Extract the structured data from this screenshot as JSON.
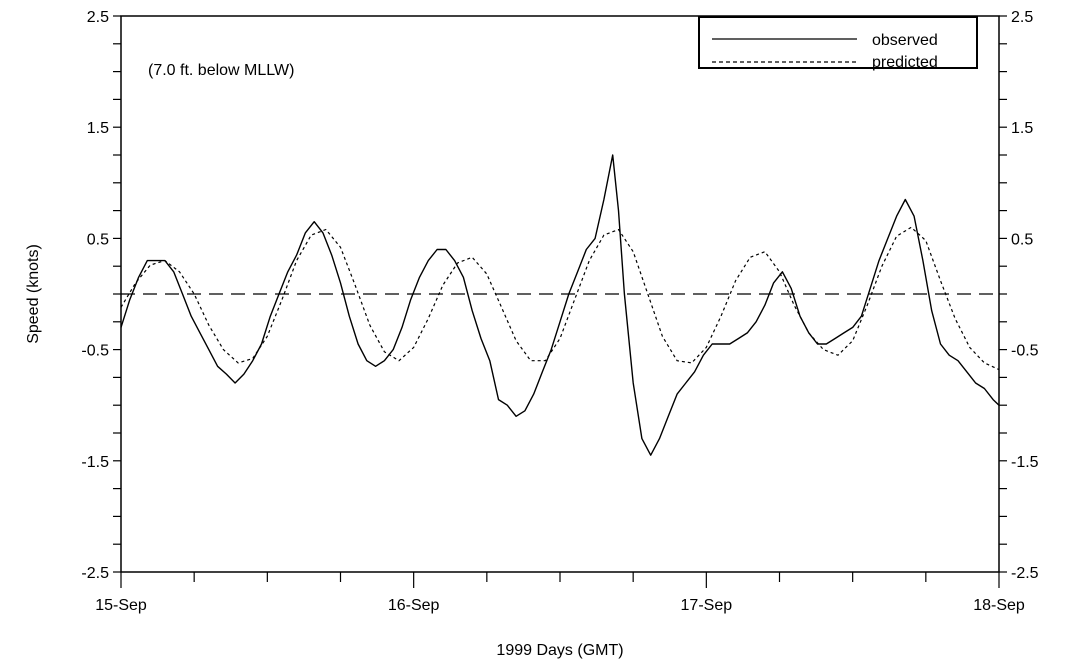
{
  "chart_data": {
    "type": "line",
    "annotation": "(7.0 ft. below MLLW)",
    "xlabel": "1999 Days (GMT)",
    "ylabel": "Speed (knots)",
    "x_ticks": [
      "15-Sep",
      "16-Sep",
      "17-Sep",
      "18-Sep"
    ],
    "x_range_days": [
      0,
      3
    ],
    "ylim": [
      -2.5,
      2.5
    ],
    "y_ticks_left": [
      "2.5",
      "1.5",
      "0.5",
      "-0.5",
      "-1.5",
      "-2.5"
    ],
    "y_ticks_right": [
      "2.5",
      "1.5",
      "0.5",
      "-0.5",
      "-1.5",
      "-2.5"
    ],
    "zero_reference_line": 0,
    "legend_position": "top-right",
    "series": [
      {
        "name": "observed",
        "style": "solid",
        "x": [
          0.0,
          0.03,
          0.06,
          0.09,
          0.12,
          0.15,
          0.18,
          0.21,
          0.24,
          0.27,
          0.3,
          0.33,
          0.36,
          0.39,
          0.42,
          0.45,
          0.48,
          0.51,
          0.54,
          0.57,
          0.6,
          0.63,
          0.66,
          0.69,
          0.72,
          0.75,
          0.78,
          0.81,
          0.84,
          0.87,
          0.9,
          0.93,
          0.96,
          0.99,
          1.02,
          1.05,
          1.08,
          1.11,
          1.14,
          1.17,
          1.2,
          1.23,
          1.26,
          1.29,
          1.32,
          1.35,
          1.38,
          1.41,
          1.44,
          1.47,
          1.5,
          1.53,
          1.56,
          1.59,
          1.62,
          1.65,
          1.68,
          1.7,
          1.72,
          1.75,
          1.78,
          1.81,
          1.84,
          1.87,
          1.9,
          1.93,
          1.96,
          1.99,
          2.02,
          2.05,
          2.08,
          2.11,
          2.14,
          2.17,
          2.2,
          2.23,
          2.26,
          2.29,
          2.32,
          2.35,
          2.38,
          2.41,
          2.44,
          2.47,
          2.5,
          2.53,
          2.56,
          2.59,
          2.62,
          2.65,
          2.68,
          2.71,
          2.74,
          2.77,
          2.8,
          2.83,
          2.86,
          2.89,
          2.92,
          2.95,
          2.98,
          3.0
        ],
        "y": [
          -0.3,
          -0.05,
          0.15,
          0.3,
          0.3,
          0.3,
          0.2,
          0.0,
          -0.2,
          -0.35,
          -0.5,
          -0.65,
          -0.72,
          -0.8,
          -0.72,
          -0.6,
          -0.45,
          -0.2,
          0.0,
          0.2,
          0.35,
          0.55,
          0.65,
          0.55,
          0.35,
          0.1,
          -0.2,
          -0.45,
          -0.6,
          -0.65,
          -0.6,
          -0.5,
          -0.3,
          -0.05,
          0.15,
          0.3,
          0.4,
          0.4,
          0.3,
          0.15,
          -0.15,
          -0.4,
          -0.6,
          -0.95,
          -1.0,
          -1.1,
          -1.05,
          -0.9,
          -0.7,
          -0.5,
          -0.25,
          0.0,
          0.2,
          0.4,
          0.5,
          0.85,
          1.25,
          0.75,
          0.0,
          -0.8,
          -1.3,
          -1.45,
          -1.3,
          -1.1,
          -0.9,
          -0.8,
          -0.7,
          -0.55,
          -0.45,
          -0.45,
          -0.45,
          -0.4,
          -0.35,
          -0.25,
          -0.1,
          0.1,
          0.2,
          0.05,
          -0.2,
          -0.35,
          -0.45,
          -0.45,
          -0.4,
          -0.35,
          -0.3,
          -0.2,
          0.05,
          0.3,
          0.5,
          0.7,
          0.85,
          0.7,
          0.3,
          -0.15,
          -0.45,
          -0.55,
          -0.6,
          -0.7,
          -0.8,
          -0.85,
          -0.95,
          -1.0
        ]
      },
      {
        "name": "predicted",
        "style": "dotted",
        "x": [
          0.0,
          0.05,
          0.1,
          0.15,
          0.2,
          0.25,
          0.3,
          0.35,
          0.4,
          0.45,
          0.5,
          0.55,
          0.6,
          0.65,
          0.7,
          0.75,
          0.8,
          0.85,
          0.9,
          0.95,
          1.0,
          1.05,
          1.1,
          1.15,
          1.2,
          1.25,
          1.3,
          1.35,
          1.4,
          1.45,
          1.5,
          1.55,
          1.6,
          1.65,
          1.7,
          1.75,
          1.8,
          1.85,
          1.9,
          1.95,
          2.0,
          2.05,
          2.1,
          2.15,
          2.2,
          2.25,
          2.3,
          2.35,
          2.4,
          2.45,
          2.5,
          2.55,
          2.6,
          2.65,
          2.7,
          2.75,
          2.8,
          2.85,
          2.9,
          2.95,
          3.0
        ],
        "y": [
          -0.12,
          0.1,
          0.26,
          0.3,
          0.2,
          0.0,
          -0.28,
          -0.5,
          -0.62,
          -0.58,
          -0.38,
          -0.05,
          0.3,
          0.53,
          0.58,
          0.42,
          0.08,
          -0.28,
          -0.52,
          -0.6,
          -0.48,
          -0.22,
          0.08,
          0.28,
          0.33,
          0.18,
          -0.12,
          -0.42,
          -0.6,
          -0.6,
          -0.4,
          -0.05,
          0.3,
          0.53,
          0.58,
          0.38,
          0.0,
          -0.38,
          -0.6,
          -0.62,
          -0.48,
          -0.2,
          0.12,
          0.33,
          0.38,
          0.2,
          -0.1,
          -0.35,
          -0.5,
          -0.55,
          -0.42,
          -0.1,
          0.25,
          0.52,
          0.6,
          0.48,
          0.12,
          -0.22,
          -0.48,
          -0.62,
          -0.68
        ]
      }
    ]
  }
}
